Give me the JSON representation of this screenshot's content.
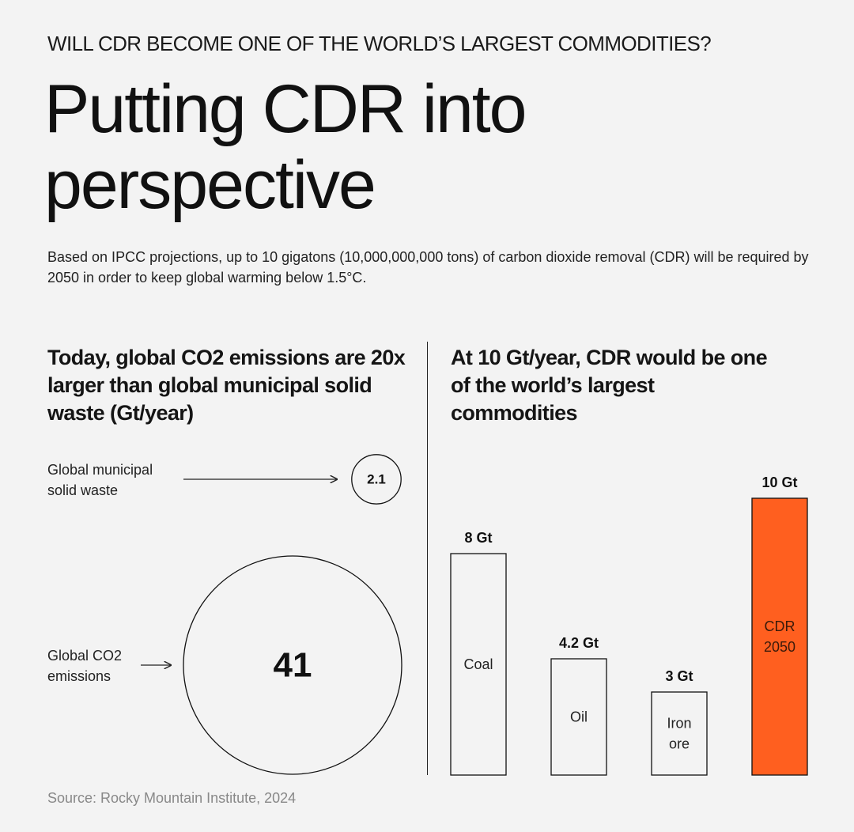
{
  "header": {
    "eyebrow": "WILL CDR BECOME ONE OF THE WORLD’S LARGEST COMMODITIES?",
    "title": "Putting CDR into perspective",
    "subtitle": "Based on IPCC projections, up to 10 gigatons (10,000,000,000 tons) of carbon dioxide removal (CDR) will be required by 2050 in order to keep global warming below 1.5°C."
  },
  "left_panel": {
    "heading": "Today, global CO2 emissions are 20x larger than global municipal solid waste (Gt/year)"
  },
  "right_panel": {
    "heading": "At 10 Gt/year, CDR would be one of the world’s largest commodities"
  },
  "source": "Source: Rocky Mountain Institute, 2024",
  "colors": {
    "highlight": "#ff5f1f",
    "ink": "#111111",
    "background": "#f3f3f3"
  },
  "chart_data": [
    {
      "type": "bubble",
      "title": "Today, global CO2 emissions are 20x larger than global municipal solid waste (Gt/year)",
      "unit": "Gt/year",
      "items": [
        {
          "label": "Global municipal solid waste",
          "value": 2.1,
          "display": "2.1"
        },
        {
          "label": "Global CO2 emissions",
          "value": 41,
          "display": "41"
        }
      ]
    },
    {
      "type": "bar",
      "title": "At 10 Gt/year, CDR would be one of the world’s largest commodities",
      "unit": "Gt",
      "categories": [
        "Coal",
        "Oil",
        "Iron ore",
        "CDR 2050"
      ],
      "values": [
        8,
        4.2,
        3,
        10
      ],
      "value_labels": [
        "8 Gt",
        "4.2 Gt",
        "3 Gt",
        "10 Gt"
      ],
      "highlight": "CDR 2050",
      "ylim": [
        0,
        10
      ]
    }
  ]
}
